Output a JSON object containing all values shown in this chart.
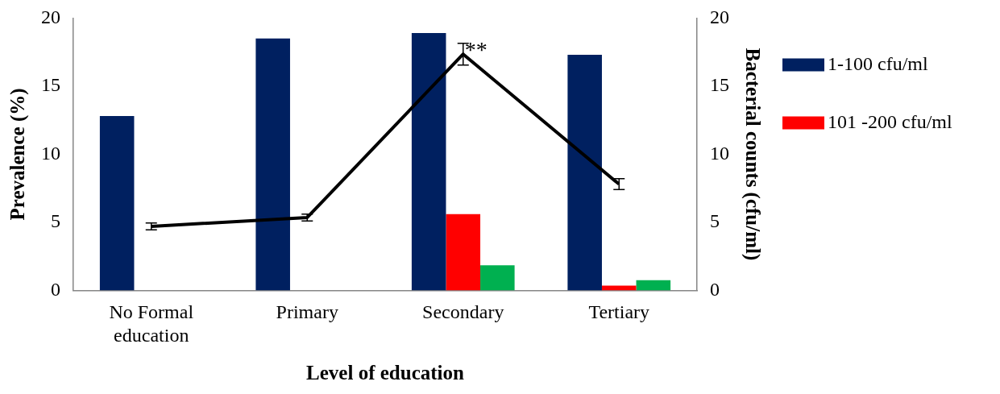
{
  "chart_data": {
    "type": "bar",
    "xlabel": "Level of education",
    "ylabel": "Prevalence (%)",
    "y2label": "Bacterial counts (cfu/ml)",
    "categories": [
      "No Formal education",
      "Primary",
      "Secondary",
      "Tertiary"
    ],
    "series": [
      {
        "name": "1-100 cfu/ml",
        "color": "#002060",
        "values": [
          12.8,
          18.5,
          18.9,
          17.3
        ]
      },
      {
        "name": "101 -200 cfu/ml",
        "color": "#ff0000",
        "values": [
          null,
          null,
          5.6,
          0.35
        ]
      },
      {
        "color": "#00b050",
        "values": [
          null,
          null,
          1.85,
          0.75
        ]
      },
      {
        "type": "line",
        "axis": "y2",
        "color": "#000000",
        "values": [
          4.7,
          5.35,
          17.35,
          7.8
        ],
        "errors": [
          0.25,
          0.25,
          0.8,
          0.4
        ]
      }
    ],
    "ylim": [
      0,
      20
    ],
    "yticks": [
      0,
      5,
      10,
      15,
      20
    ],
    "y2lim": [
      0,
      20
    ],
    "y2ticks": [
      0,
      5,
      10,
      15,
      20
    ],
    "annotations": [
      {
        "text": "**",
        "x": "Secondary",
        "y": 17.35
      }
    ],
    "grid": false,
    "legend": "right"
  }
}
